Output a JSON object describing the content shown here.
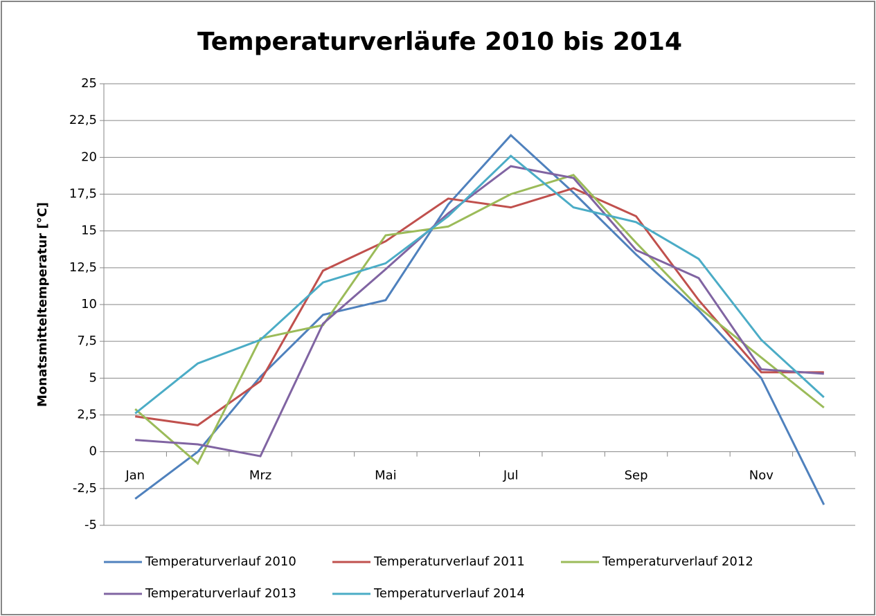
{
  "chart_data": {
    "type": "line",
    "title": "Temperaturverläufe 2010 bis 2014",
    "y_label": "Monatsmitteltemperatur  [°C]",
    "categories": [
      "Jan",
      null,
      "Mrz",
      null,
      "Mai",
      null,
      "Jul",
      null,
      "Sep",
      null,
      "Nov",
      null
    ],
    "series": [
      {
        "name": "Temperaturverlauf 2010",
        "color": "#4f81bd",
        "values": [
          -3.2,
          0,
          5.1,
          9.3,
          10.3,
          16.8,
          21.5,
          17.6,
          13.4,
          9.6,
          5.0,
          -3.6
        ]
      },
      {
        "name": "Temperaturverlauf 2011",
        "color": "#c0504d",
        "values": [
          2.4,
          1.8,
          4.8,
          12.3,
          14.3,
          17.2,
          16.6,
          17.9,
          16.0,
          10.3,
          5.4,
          5.4
        ]
      },
      {
        "name": "Temperaturverlauf 2012",
        "color": "#9bbb59",
        "values": [
          2.9,
          -0.8,
          7.7,
          8.6,
          14.7,
          15.3,
          17.5,
          18.8,
          14.2,
          9.8,
          6.4,
          3.0
        ]
      },
      {
        "name": "Temperaturverlauf 2013",
        "color": "#8064a2",
        "values": [
          0.8,
          0.5,
          -0.3,
          8.7,
          12.4,
          16.2,
          19.4,
          18.6,
          13.7,
          11.8,
          5.6,
          5.3
        ]
      },
      {
        "name": "Temperaturverlauf 2014",
        "color": "#4bacc6",
        "values": [
          2.6,
          6.0,
          7.6,
          11.5,
          12.8,
          16.0,
          20.1,
          16.6,
          15.6,
          13.1,
          7.6,
          3.7
        ]
      }
    ],
    "ylim": [
      -5,
      25
    ],
    "yticks": [
      {
        "value": -5,
        "label": "-5"
      },
      {
        "value": -2.5,
        "label": "-2,5"
      },
      0,
      {
        "value": 2.5,
        "label": "2,5"
      },
      5,
      {
        "value": 7.5,
        "label": "7,5"
      },
      10,
      {
        "value": 12.5,
        "label": "12,5"
      },
      15,
      {
        "value": 17.5,
        "label": "17,5"
      },
      20,
      {
        "value": 22.5,
        "label": "22,5"
      },
      25
    ],
    "grid": true,
    "legend": "bottom"
  }
}
